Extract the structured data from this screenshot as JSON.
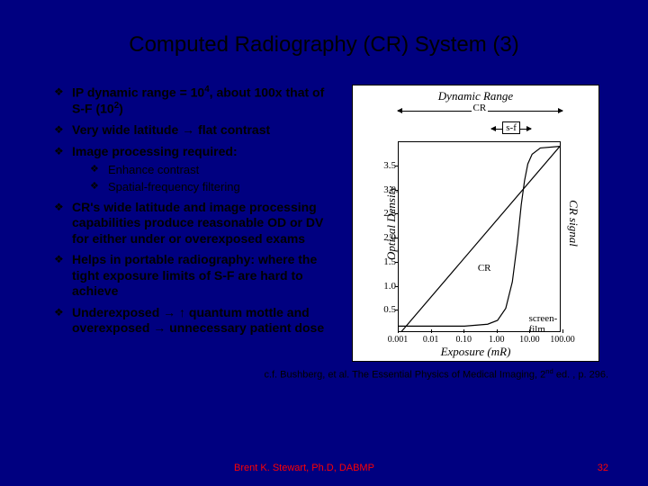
{
  "title": "Computed Radiography (CR) System (3)",
  "bullets": {
    "b1_pre": "IP dynamic range = 10",
    "b1_sup1": "4",
    "b1_mid": ", about 100x that of S-F (10",
    "b1_sup2": "2",
    "b1_post": ")",
    "b2": "Very wide latitude → flat contrast",
    "b3": "Image processing required:",
    "b3a": "Enhance contrast",
    "b3b": "Spatial-frequency filtering",
    "b4": "CR's wide latitude and image processing capabilities produce reasonable OD or DV for either under or overexposed exams",
    "b5": "Helps in portable radiography: where the tight exposure limits of S-F are hard to achieve",
    "b6": "Underexposed → ↑ quantum mottle and overexposed → unnecessary patient dose"
  },
  "citation_pre": "c.f. Bushberg, et al. The Essential Physics of Medical Imaging, 2",
  "citation_sup": "nd",
  "citation_post": " ed. , p. 296.",
  "footer": {
    "author": "Brent K. Stewart, Ph.D, DABMP",
    "page": "32"
  },
  "chart": {
    "type": "line",
    "background_color": "#ffffff",
    "border_color": "#000000",
    "dr_title": "Dynamic Range",
    "dr_cr_label": "CR",
    "dr_sf_label": "s-f",
    "y_left_label": "Optical Density",
    "y_right_label": "CR signal",
    "x_label": "Exposure (mR)",
    "xscale": "log",
    "xlim": [
      0.001,
      100
    ],
    "xticks": [
      0.001,
      0.01,
      0.1,
      1.0,
      10.0,
      100.0
    ],
    "xtick_labels": [
      "0.001",
      "0.01",
      "0.10",
      "1.00",
      "10.00",
      "100.00"
    ],
    "yscale": "linear",
    "ylim": [
      0,
      4
    ],
    "ytick_step": 0.5,
    "yticks": [
      0.5,
      1.0,
      1.5,
      2.0,
      2.5,
      3.0,
      3.5
    ],
    "ytick_labels": [
      "0.5",
      "1.0",
      "1.5",
      "2.0",
      "2.5",
      "3.0",
      "3.5"
    ],
    "series": {
      "cr": {
        "label": "CR",
        "color": "#000000",
        "line_width": 1.2,
        "points_logx_y": [
          [
            -3,
            0.0
          ],
          [
            2,
            4.0
          ]
        ]
      },
      "sf": {
        "label": "screen-film",
        "color": "#000000",
        "line_width": 1.2,
        "points_logx_y": [
          [
            -3,
            0.18
          ],
          [
            -1,
            0.18
          ],
          [
            -0.3,
            0.22
          ],
          [
            0.0,
            0.3
          ],
          [
            0.25,
            0.55
          ],
          [
            0.45,
            1.1
          ],
          [
            0.6,
            1.9
          ],
          [
            0.72,
            2.7
          ],
          [
            0.82,
            3.2
          ],
          [
            0.92,
            3.55
          ],
          [
            1.05,
            3.75
          ],
          [
            1.3,
            3.88
          ],
          [
            2.0,
            3.92
          ]
        ]
      }
    },
    "dr_arrows": {
      "cr_range_logx": [
        -3,
        2
      ],
      "sf_range_logx": [
        -0.15,
        1.05
      ]
    },
    "inplot_labels": {
      "cr_pos_logx_y": [
        -0.6,
        1.5
      ],
      "sf_pos_logx_y": [
        0.95,
        0.45
      ]
    },
    "label_fontsize": 13,
    "tick_fontsize": 11
  }
}
